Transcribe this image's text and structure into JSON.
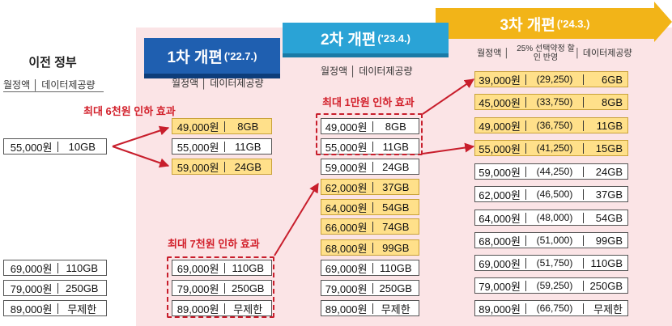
{
  "prev": {
    "title": "이전 정부",
    "sub": "월정액 │ 데이터제공량",
    "rows": [
      {
        "price": "55,000원",
        "data": "10GB"
      },
      {
        "price": "69,000원",
        "data": "110GB"
      },
      {
        "price": "79,000원",
        "data": "250GB"
      },
      {
        "price": "89,000원",
        "data": "무제한"
      }
    ]
  },
  "r1": {
    "title": "1차 개편",
    "date": "('22.7.)",
    "sub": "월정액 │ 데이터제공량",
    "effect_top": "최대 6천원 인하 효과",
    "effect_bottom": "최대 7천원 인하 효과",
    "rows": [
      {
        "price": "49,000원",
        "data": "8GB",
        "color": "#ffe08a"
      },
      {
        "price": "55,000원",
        "data": "11GB",
        "color": "#ffffff"
      },
      {
        "price": "59,000원",
        "data": "24GB",
        "color": "#ffe08a"
      },
      {
        "price": "69,000원",
        "data": "110GB",
        "color": "#ffffff"
      },
      {
        "price": "79,000원",
        "data": "250GB",
        "color": "#ffffff"
      },
      {
        "price": "89,000원",
        "data": "무제한",
        "color": "#ffffff"
      }
    ]
  },
  "r2": {
    "title": "2차 개편",
    "date": "('23.4.)",
    "sub": "월정액 │ 데이터제공량",
    "effect": "최대 1만원 인하 효과",
    "rows": [
      {
        "price": "49,000원",
        "data": "8GB",
        "color": "#ffffff"
      },
      {
        "price": "55,000원",
        "data": "11GB",
        "color": "#ffffff"
      },
      {
        "price": "59,000원",
        "data": "24GB",
        "color": "#ffffff"
      },
      {
        "price": "62,000원",
        "data": "37GB",
        "color": "#ffe08a"
      },
      {
        "price": "64,000원",
        "data": "54GB",
        "color": "#ffe08a"
      },
      {
        "price": "66,000원",
        "data": "74GB",
        "color": "#ffe08a"
      },
      {
        "price": "68,000원",
        "data": "99GB",
        "color": "#ffe08a"
      },
      {
        "price": "69,000원",
        "data": "110GB",
        "color": "#ffffff"
      },
      {
        "price": "79,000원",
        "data": "250GB",
        "color": "#ffffff"
      },
      {
        "price": "89,000원",
        "data": "무제한",
        "color": "#ffffff"
      }
    ]
  },
  "r3": {
    "title": "3차 개편",
    "date": "('24.3.)",
    "sub_left": "월정액 │",
    "sub_mid": "25% 선택약정 할인 반영",
    "sub_right": "│ 데이터제공량",
    "rows": [
      {
        "price": "39,000원",
        "disc": "(29,250)",
        "data": "6GB",
        "color": "#ffe08a"
      },
      {
        "price": "45,000원",
        "disc": "(33,750)",
        "data": "8GB",
        "color": "#ffe08a"
      },
      {
        "price": "49,000원",
        "disc": "(36,750)",
        "data": "11GB",
        "color": "#ffe08a"
      },
      {
        "price": "55,000원",
        "disc": "(41,250)",
        "data": "15GB",
        "color": "#ffe08a"
      },
      {
        "price": "59,000원",
        "disc": "(44,250)",
        "data": "24GB",
        "color": "#ffffff"
      },
      {
        "price": "62,000원",
        "disc": "(46,500)",
        "data": "37GB",
        "color": "#ffffff"
      },
      {
        "price": "64,000원",
        "disc": "(48,000)",
        "data": "54GB",
        "color": "#ffffff"
      },
      {
        "price": "68,000원",
        "disc": "(51,000)",
        "data": "99GB",
        "color": "#ffffff"
      },
      {
        "price": "69,000원",
        "disc": "(51,750)",
        "data": "110GB",
        "color": "#ffffff"
      },
      {
        "price": "79,000원",
        "disc": "(59,250)",
        "data": "250GB",
        "color": "#ffffff"
      },
      {
        "price": "89,000원",
        "disc": "(66,750)",
        "data": "무제한",
        "color": "#ffffff"
      }
    ]
  },
  "colors": {
    "accent_red": "#d21f2a",
    "highlight": "#ffe08a",
    "round1": "#1f5fb0",
    "round2": "#2aa3d6",
    "round3": "#f2b418",
    "background": "#fbe4e6"
  }
}
